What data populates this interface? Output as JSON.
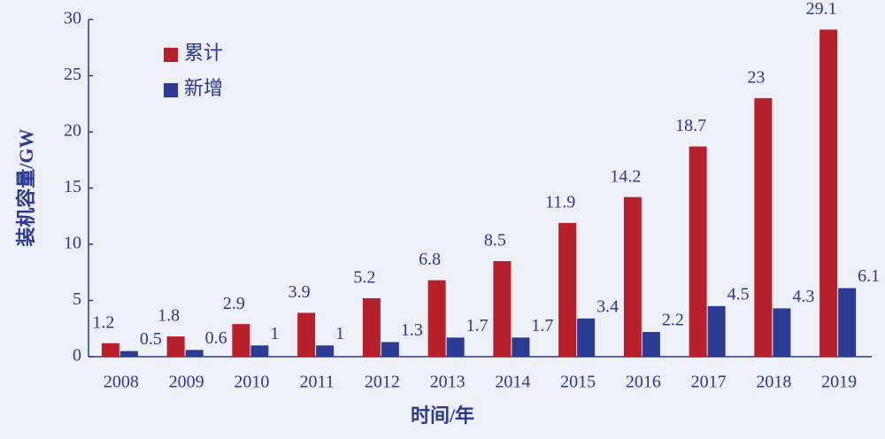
{
  "chart_data": {
    "type": "bar",
    "x_label": "时间/年",
    "y_label": "装机容量/GW",
    "categories": [
      "2008",
      "2009",
      "2010",
      "2011",
      "2012",
      "2013",
      "2014",
      "2015",
      "2016",
      "2017",
      "2018",
      "2019"
    ],
    "series": [
      {
        "name": "累计",
        "color": "#b5202a",
        "values": [
          1.2,
          1.8,
          2.9,
          3.9,
          5.2,
          6.8,
          8.5,
          11.9,
          14.2,
          18.7,
          23,
          29.1
        ]
      },
      {
        "name": "新增",
        "color": "#2b3a92",
        "values": [
          0.5,
          0.6,
          1,
          1,
          1.3,
          1.7,
          1.7,
          3.4,
          2.2,
          4.5,
          4.3,
          6.1
        ]
      }
    ],
    "ylim": [
      0,
      30
    ],
    "yticks": [
      0,
      5,
      10,
      15,
      20,
      25,
      30
    ],
    "legend": "upper-left"
  }
}
